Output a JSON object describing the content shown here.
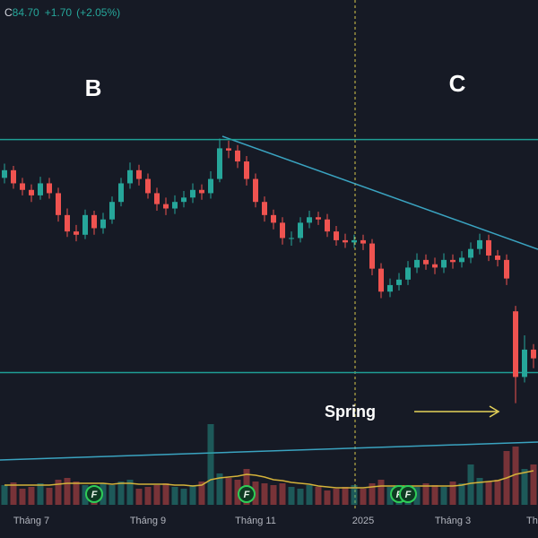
{
  "chart_data": {
    "type": "candlestick",
    "legend": {
      "prefix": "C",
      "close": "84.70",
      "change": "+1.70",
      "change_pct": "(+2.05%)"
    },
    "annotations": {
      "wave_b": "B",
      "wave_c": "C",
      "spring": "Spring"
    },
    "categories": [
      null,
      null,
      null,
      "Tháng 7",
      null,
      null,
      null,
      null,
      null,
      null,
      null,
      null,
      null,
      null,
      null,
      null,
      "Tháng 9",
      null,
      null,
      null,
      null,
      null,
      null,
      null,
      null,
      null,
      null,
      null,
      "Tháng 11",
      null,
      null,
      null,
      null,
      null,
      null,
      null,
      null,
      null,
      null,
      null,
      "2025",
      null,
      null,
      null,
      null,
      null,
      null,
      null,
      null,
      null,
      "Tháng 3",
      null,
      null,
      null,
      null,
      null,
      null,
      null,
      null,
      "Th"
    ],
    "open": [
      101.2,
      101.9,
      100.7,
      100.1,
      99.6,
      100.7,
      99.8,
      97.8,
      96.3,
      96.0,
      97.8,
      96.6,
      97.4,
      99.0,
      100.7,
      101.9,
      101.1,
      99.8,
      98.8,
      98.4,
      99.0,
      99.4,
      100.1,
      99.8,
      101.1,
      103.9,
      103.7,
      102.7,
      101.1,
      99.0,
      97.8,
      97.1,
      95.7,
      95.7,
      97.1,
      97.6,
      97.4,
      96.3,
      95.5,
      95.3,
      95.5,
      95.2,
      92.9,
      90.8,
      91.4,
      91.9,
      93.0,
      93.7,
      93.3,
      93.0,
      93.7,
      93.5,
      93.9,
      94.7,
      95.5,
      94.1,
      93.7,
      89.0,
      83.0,
      85.5
    ],
    "high": [
      102.5,
      102.3,
      101.2,
      100.6,
      101.3,
      101.2,
      100.3,
      98.4,
      96.9,
      98.3,
      98.2,
      98.0,
      99.5,
      101.2,
      102.6,
      102.4,
      101.6,
      100.3,
      99.4,
      99.6,
      100.0,
      100.7,
      100.6,
      101.8,
      104.8,
      104.6,
      104.2,
      103.2,
      101.6,
      99.5,
      98.3,
      97.6,
      96.3,
      97.6,
      98.2,
      98.1,
      97.9,
      96.8,
      96.1,
      96.0,
      96.0,
      95.6,
      93.4,
      92.0,
      92.5,
      93.6,
      94.3,
      94.2,
      93.9,
      94.3,
      94.2,
      94.5,
      95.3,
      96.1,
      96.0,
      94.6,
      94.2,
      89.5,
      86.8,
      86.0
    ],
    "low": [
      100.7,
      100.2,
      99.6,
      99.0,
      99.2,
      99.3,
      97.2,
      95.8,
      95.4,
      95.6,
      96.0,
      96.1,
      97.0,
      98.6,
      100.2,
      100.5,
      99.3,
      98.2,
      97.8,
      97.9,
      98.5,
      98.9,
      99.2,
      99.3,
      100.8,
      103.0,
      102.1,
      100.5,
      98.5,
      97.2,
      96.5,
      95.1,
      95.0,
      95.3,
      96.6,
      96.9,
      95.8,
      95.0,
      94.8,
      94.8,
      94.6,
      92.3,
      90.2,
      90.3,
      90.9,
      91.4,
      92.5,
      92.8,
      92.4,
      92.5,
      92.9,
      93.0,
      93.4,
      94.2,
      93.6,
      93.1,
      91.4,
      80.6,
      82.5,
      83.8
    ],
    "close": [
      101.9,
      100.7,
      100.1,
      99.6,
      100.7,
      99.8,
      97.8,
      96.3,
      96.0,
      97.8,
      96.6,
      97.4,
      99.0,
      100.7,
      101.9,
      101.1,
      99.8,
      98.8,
      98.4,
      99.0,
      99.4,
      100.1,
      99.8,
      101.1,
      103.9,
      103.7,
      102.7,
      101.1,
      99.0,
      97.8,
      97.1,
      95.7,
      95.7,
      97.1,
      97.6,
      97.4,
      96.3,
      95.5,
      95.3,
      95.5,
      95.2,
      92.9,
      90.8,
      91.4,
      91.9,
      93.0,
      93.7,
      93.3,
      93.0,
      93.7,
      93.5,
      93.9,
      94.7,
      95.5,
      94.1,
      93.7,
      92.0,
      83.0,
      85.5,
      84.7
    ],
    "volume": [
      22,
      25,
      18,
      20,
      24,
      19,
      28,
      30,
      26,
      22,
      20,
      24,
      22,
      26,
      28,
      18,
      20,
      22,
      24,
      20,
      18,
      22,
      26,
      90,
      35,
      30,
      28,
      40,
      26,
      24,
      22,
      24,
      20,
      18,
      22,
      20,
      16,
      18,
      20,
      22,
      18,
      24,
      28,
      20,
      22,
      18,
      20,
      24,
      22,
      20,
      26,
      24,
      45,
      30,
      26,
      28,
      60,
      65,
      40,
      45
    ],
    "volume_ma": [
      22,
      22,
      22,
      22,
      22,
      22,
      23,
      24,
      24,
      24,
      24,
      24,
      23,
      24,
      24,
      23,
      23,
      23,
      23,
      22,
      22,
      21,
      22,
      28,
      30,
      31,
      32,
      34,
      33,
      31,
      28,
      27,
      25,
      24,
      23,
      21,
      20,
      19,
      19,
      19,
      19,
      20,
      21,
      21,
      21,
      21,
      21,
      21,
      21,
      21,
      21,
      22,
      24,
      25,
      26,
      27,
      30,
      34,
      36,
      38
    ],
    "events": [
      {
        "at": 10,
        "label": "F"
      },
      {
        "at": 27,
        "label": "F"
      },
      {
        "at": 44,
        "label": "F"
      },
      {
        "at": 45,
        "label": "F"
      }
    ],
    "levels": [
      104.7,
      83.4
    ],
    "ylim": [
      75,
      115
    ],
    "vlim": [
      0,
      100
    ],
    "up_color": "#26a69a",
    "down_color": "#ef5350",
    "level_color": "#1f9e95",
    "ma_color": "#d4b23a"
  }
}
